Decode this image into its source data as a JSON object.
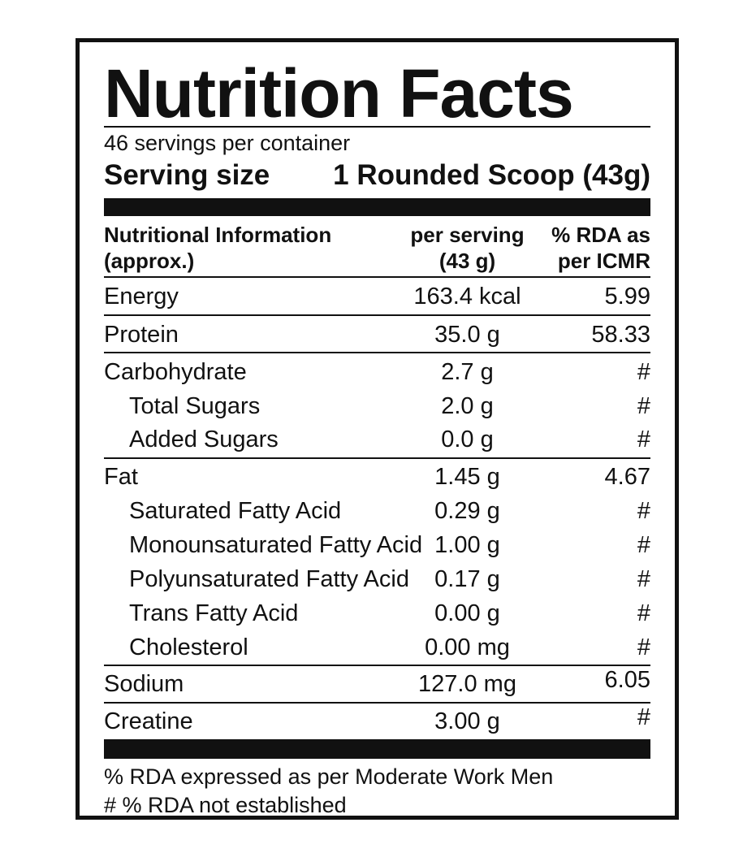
{
  "title": "Nutrition Facts",
  "servings_per_container": "46 servings per container",
  "serving_size": {
    "label": "Serving size",
    "value": "1 Rounded Scoop (43g)"
  },
  "header": {
    "col1": "Nutritional Information (approx.)",
    "col2": "per serving (43 g)",
    "col3": "% RDA as per ICMR"
  },
  "rows": [
    {
      "name": "Energy",
      "value": "163.4 kcal",
      "rda": "5.99"
    },
    {
      "name": "Protein",
      "value": "35.0 g",
      "rda": "58.33"
    },
    {
      "name": "Carbohydrate",
      "value": "2.7 g",
      "rda": "#"
    },
    {
      "name": "Total Sugars",
      "value": "2.0 g",
      "rda": "#"
    },
    {
      "name": "Added Sugars",
      "value": "0.0 g",
      "rda": "#"
    },
    {
      "name": "Fat",
      "value": "1.45 g",
      "rda": "4.67"
    },
    {
      "name": "Saturated Fatty Acid",
      "value": "0.29 g",
      "rda": "#"
    },
    {
      "name": "Monounsaturated Fatty Acid",
      "value": "1.00 g",
      "rda": "#"
    },
    {
      "name": "Polyunsaturated Fatty Acid",
      "value": "0.17 g",
      "rda": "#"
    },
    {
      "name": "Trans Fatty Acid",
      "value": "0.00 g",
      "rda": "#"
    },
    {
      "name": "Cholesterol",
      "value": "0.00 mg",
      "rda": "#"
    },
    {
      "name": "Sodium",
      "value": "127.0 mg",
      "rda": "6.05"
    },
    {
      "name": "Creatine",
      "value": "3.00 g",
      "rda": "#"
    }
  ],
  "footnotes": [
    "% RDA expressed as per Moderate Work Men",
    "# % RDA not established"
  ]
}
